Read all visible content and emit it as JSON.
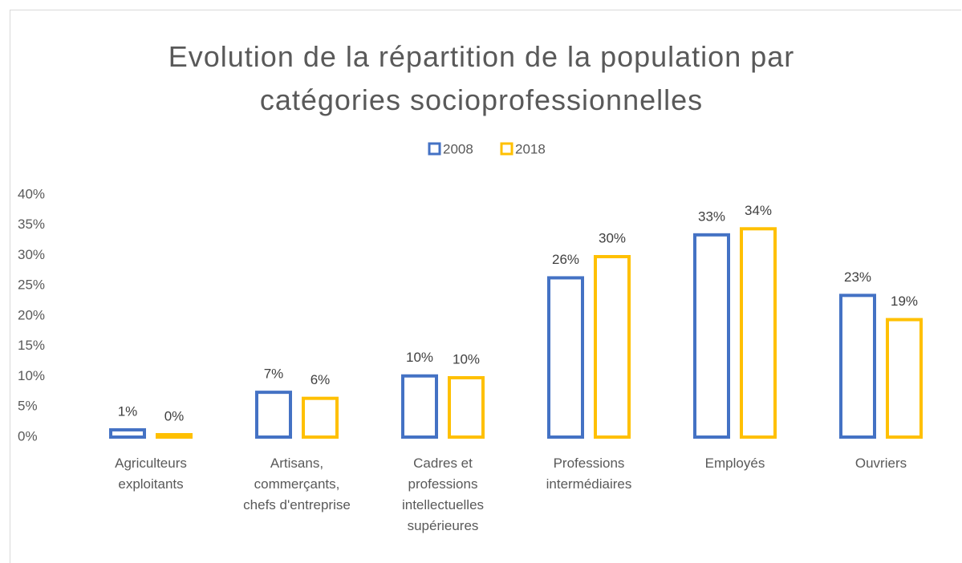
{
  "chart_data": {
    "type": "bar",
    "title": "Evolution de la répartition de la population par catégories socioprofessionnelles",
    "categories": [
      "Agriculteurs exploitants",
      "Artisans, commerçants, chefs d'entreprise",
      "Cadres et professions intellectuelles supérieures",
      "Professions intermédiaires",
      "Employés",
      "Ouvriers"
    ],
    "series": [
      {
        "name": "2008",
        "color": "#4472c4",
        "values": [
          1.2,
          7.4,
          10.1,
          26.3,
          33.4,
          23.4
        ],
        "value_labels": [
          "1%",
          "7%",
          "10%",
          "26%",
          "33%",
          "23%"
        ]
      },
      {
        "name": "2018",
        "color": "#ffc000",
        "values": [
          0.4,
          6.4,
          9.8,
          29.8,
          34.4,
          19.4
        ],
        "value_labels": [
          "0%",
          "6%",
          "10%",
          "30%",
          "34%",
          "19%"
        ]
      }
    ],
    "ylim": [
      0,
      40
    ],
    "yticks": [
      {
        "value": 0,
        "label": "0%"
      },
      {
        "value": 5,
        "label": "5%"
      },
      {
        "value": 10,
        "label": "10%"
      },
      {
        "value": 15,
        "label": "15%"
      },
      {
        "value": 20,
        "label": "20%"
      },
      {
        "value": 25,
        "label": "25%"
      },
      {
        "value": 30,
        "label": "30%"
      },
      {
        "value": 35,
        "label": "35%"
      },
      {
        "value": 40,
        "label": "40%"
      }
    ],
    "grid": false,
    "legend": "top"
  }
}
